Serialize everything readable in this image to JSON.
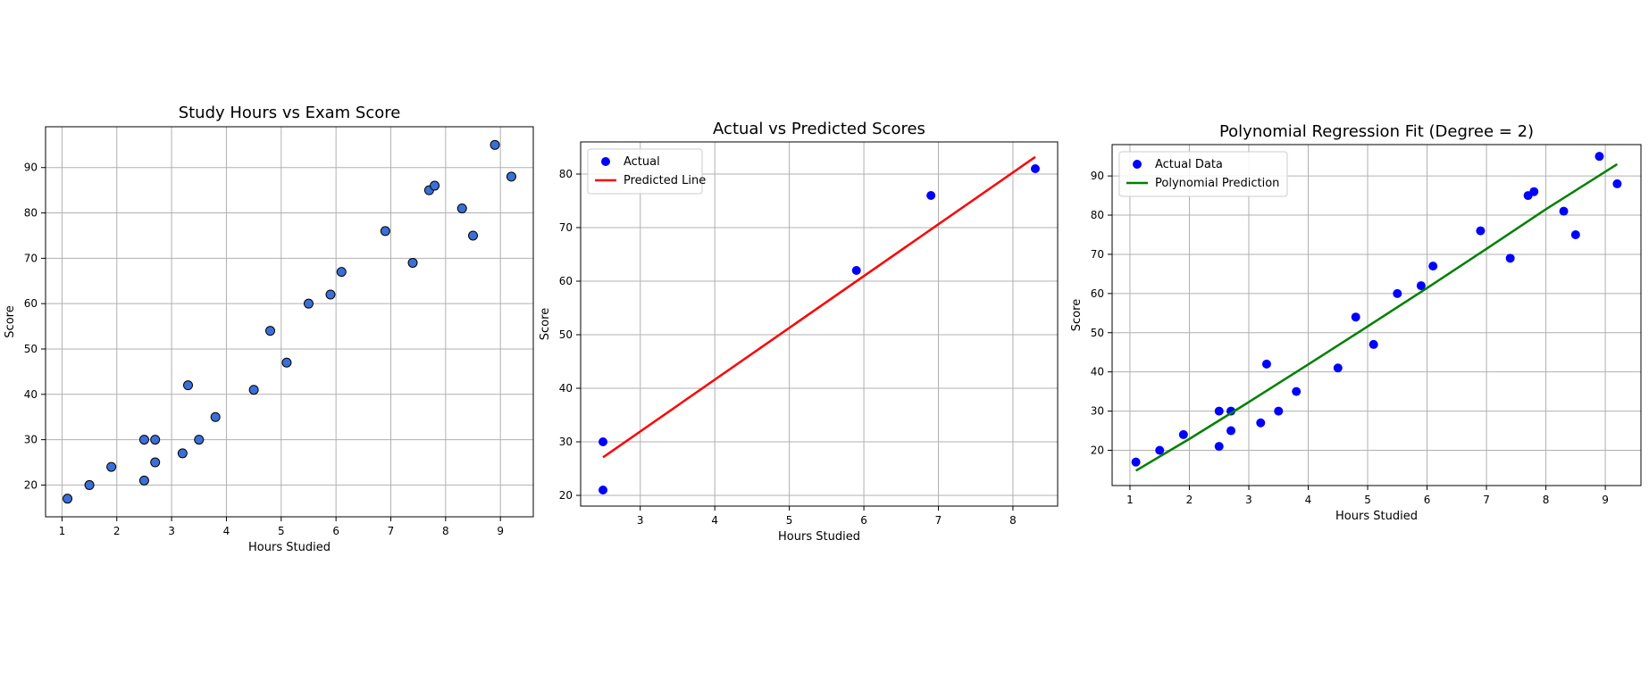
{
  "chart_data": [
    {
      "type": "scatter",
      "title": "Study Hours vs Exam Score",
      "xlabel": "Hours Studied",
      "ylabel": "Score",
      "xlim": [
        0.7,
        9.6
      ],
      "ylim": [
        13,
        99
      ],
      "xticks": [
        1,
        2,
        3,
        4,
        5,
        6,
        7,
        8,
        9
      ],
      "yticks": [
        20,
        30,
        40,
        50,
        60,
        70,
        80,
        90
      ],
      "grid": true,
      "legend": null,
      "series": [
        {
          "x": [
            1.1,
            1.5,
            1.9,
            2.5,
            2.5,
            2.7,
            2.7,
            3.2,
            3.3,
            3.5,
            3.8,
            4.5,
            4.8,
            5.1,
            5.5,
            5.9,
            6.1,
            6.9,
            7.4,
            7.7,
            7.8,
            8.3,
            8.5,
            8.9,
            9.2
          ],
          "y": [
            17,
            20,
            24,
            21,
            30,
            25,
            30,
            27,
            42,
            30,
            35,
            41,
            54,
            47,
            60,
            62,
            67,
            76,
            69,
            85,
            86,
            81,
            75,
            95,
            88
          ],
          "color": "#3b6fd8"
        }
      ]
    },
    {
      "type": "scatter",
      "title": "Actual vs Predicted Scores",
      "xlabel": "Hours Studied",
      "ylabel": "Score",
      "xlim": [
        2.2,
        8.6
      ],
      "ylim": [
        18,
        86
      ],
      "xticks": [
        3,
        4,
        5,
        6,
        7,
        8
      ],
      "yticks": [
        20,
        30,
        40,
        50,
        60,
        70,
        80
      ],
      "grid": true,
      "legend": "top-left",
      "series": [
        {
          "name": "Actual",
          "x": [
            2.5,
            2.5,
            5.9,
            6.9,
            8.3
          ],
          "y": [
            30,
            21,
            62,
            76,
            81
          ],
          "color": "#0000ff"
        },
        {
          "name": "Predicted Line",
          "type": "line",
          "x": [
            2.5,
            8.3
          ],
          "y": [
            27.1,
            83.2
          ],
          "color": "#ff0000"
        }
      ]
    },
    {
      "type": "scatter",
      "title": "Polynomial Regression Fit (Degree = 2)",
      "xlabel": "Hours Studied",
      "ylabel": "Score",
      "xlim": [
        0.7,
        9.6
      ],
      "ylim": [
        11,
        98
      ],
      "xticks": [
        1,
        2,
        3,
        4,
        5,
        6,
        7,
        8,
        9
      ],
      "yticks": [
        20,
        30,
        40,
        50,
        60,
        70,
        80,
        90
      ],
      "grid": true,
      "legend": "top-left",
      "series": [
        {
          "name": "Actual Data",
          "x": [
            1.1,
            1.5,
            1.9,
            2.5,
            2.5,
            2.7,
            2.7,
            3.2,
            3.3,
            3.5,
            3.8,
            4.5,
            4.8,
            5.1,
            5.5,
            5.9,
            6.1,
            6.9,
            7.4,
            7.7,
            7.8,
            8.3,
            8.5,
            8.9,
            9.2
          ],
          "y": [
            17,
            20,
            24,
            21,
            30,
            25,
            30,
            27,
            42,
            30,
            35,
            41,
            54,
            47,
            60,
            62,
            67,
            76,
            69,
            85,
            86,
            81,
            75,
            95,
            88
          ],
          "color": "#0000ff"
        },
        {
          "name": "Polynomial Prediction",
          "type": "line",
          "x": [
            1.1,
            2.0,
            3.0,
            4.0,
            5.0,
            6.0,
            7.0,
            8.0,
            9.2
          ],
          "y": [
            14.8,
            22.9,
            32.3,
            41.9,
            51.6,
            61.4,
            71.4,
            81.5,
            93.0
          ],
          "color": "#008000"
        }
      ]
    }
  ]
}
